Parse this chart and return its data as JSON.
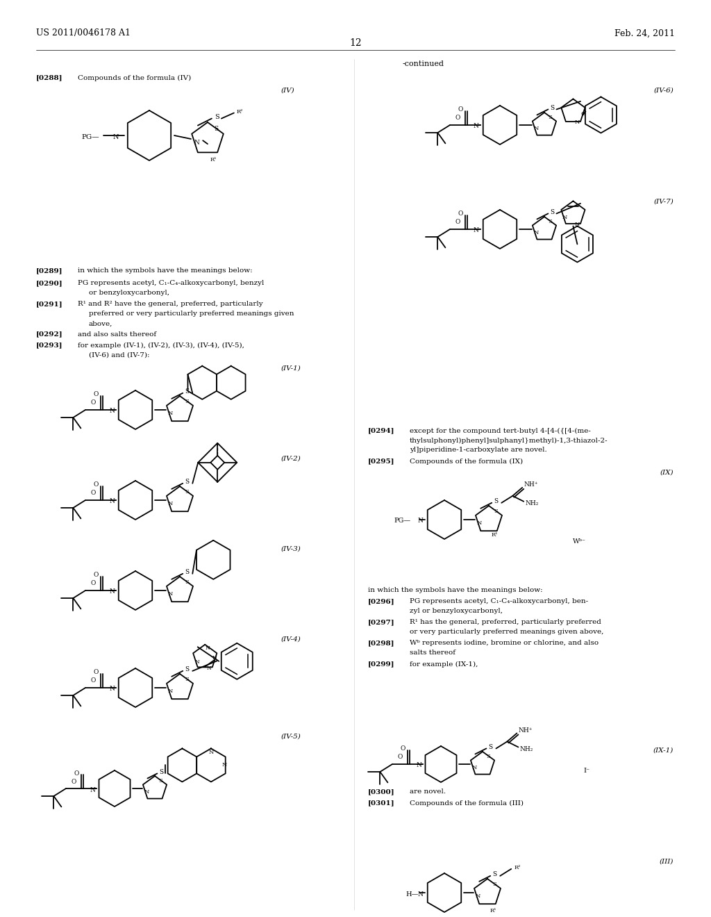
{
  "background": "#ffffff",
  "header_left": "US 2011/0046178 A1",
  "header_right": "Feb. 24, 2011",
  "page_num": "12",
  "continued": "-continued"
}
